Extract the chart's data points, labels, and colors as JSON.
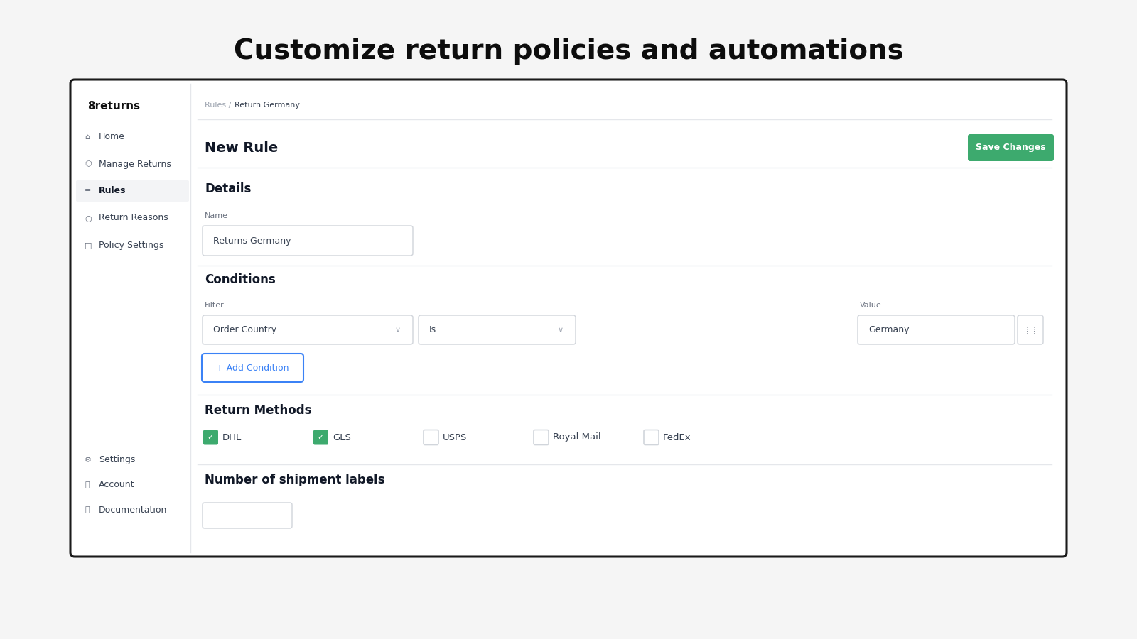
{
  "title": "Customize return policies and automations",
  "title_fontsize": 26,
  "title_fontweight": "bold",
  "bg_color": "#f5f5f5",
  "card_bg": "#ffffff",
  "card_border": "#1a1a1a",
  "sidebar_active_bg": "#f3f4f6",
  "brand": "8returns",
  "nav_items": [
    "Home",
    "Manage Returns",
    "Rules",
    "Return Reasons",
    "Policy Settings"
  ],
  "nav_active": "Rules",
  "bottom_nav": [
    "Settings",
    "Account",
    "Documentation"
  ],
  "breadcrumb_gray": "Rules /",
  "breadcrumb_dark": " Return Germany",
  "page_title": "New Rule",
  "save_btn_text": "Save Changes",
  "save_btn_color": "#3daa6e",
  "section1_title": "Details",
  "name_label": "Name",
  "name_value": "Returns Germany",
  "section2_title": "Conditions",
  "filter_label": "Filter",
  "value_label": "Value",
  "dropdown1": "Order Country",
  "dropdown2": "Is",
  "dropdown3": "Germany",
  "add_btn_text": "+ Add Condition",
  "add_btn_color": "#3b82f6",
  "section3_title": "Return Methods",
  "methods": [
    "DHL",
    "GLS",
    "USPS",
    "Royal Mail",
    "FedEx"
  ],
  "methods_checked": [
    true,
    true,
    false,
    false,
    false
  ],
  "checkbox_color": "#3daa6e",
  "section4_title": "Number of shipment labels",
  "sep_color": "#e5e7eb",
  "text_muted": "#9ca3af",
  "text_dark": "#111827",
  "text_body": "#374151",
  "text_label": "#6b7280",
  "border_color": "#d1d5db"
}
